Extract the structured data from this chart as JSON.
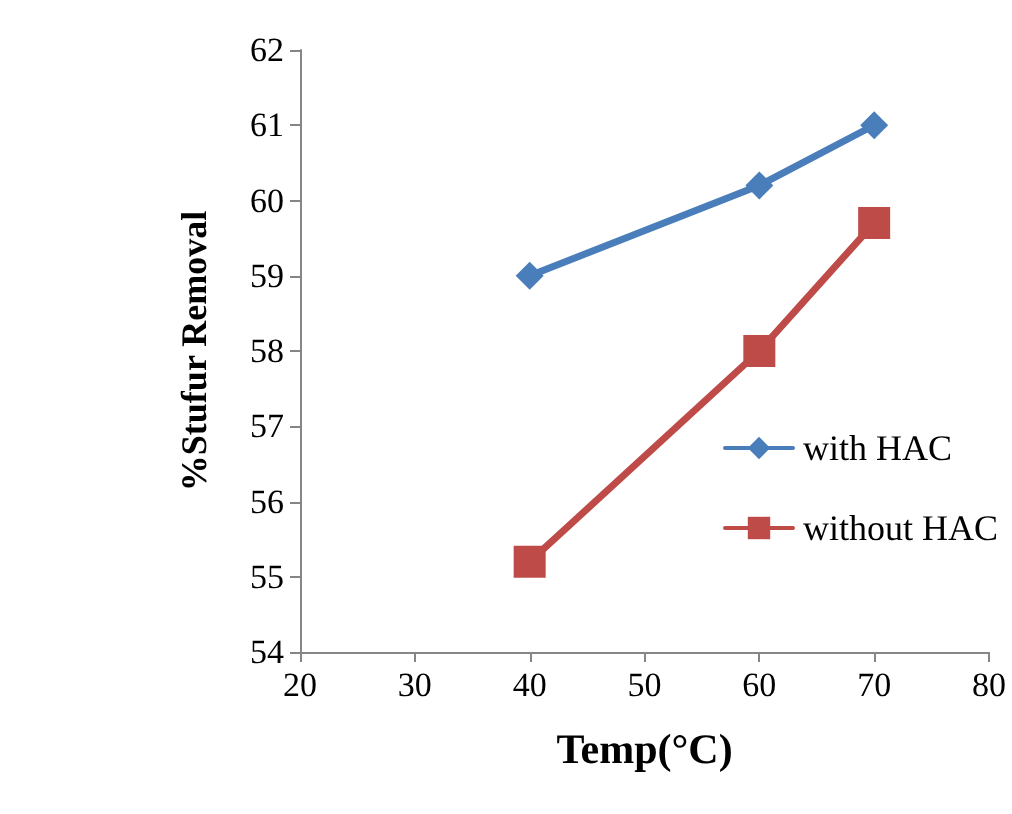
{
  "chart_data": {
    "type": "line",
    "xlabel": "Temp(°C)",
    "ylabel": "%Stufur Removal",
    "x": [
      40,
      60,
      70
    ],
    "series": [
      {
        "name": "with HAC",
        "color": "#4a7ebb",
        "marker": "diamond",
        "values": [
          59,
          60.2,
          61
        ]
      },
      {
        "name": "without HAC",
        "color": "#be4b48",
        "marker": "square",
        "values": [
          55.2,
          58,
          59.7
        ]
      }
    ],
    "xlim": [
      20,
      80
    ],
    "xticks": [
      20,
      30,
      40,
      50,
      60,
      70,
      80
    ],
    "ylim": [
      54,
      62
    ],
    "yticks": [
      54,
      55,
      56,
      57,
      58,
      59,
      60,
      61,
      62
    ],
    "grid": false,
    "legend": "right",
    "line_style": "solid"
  }
}
